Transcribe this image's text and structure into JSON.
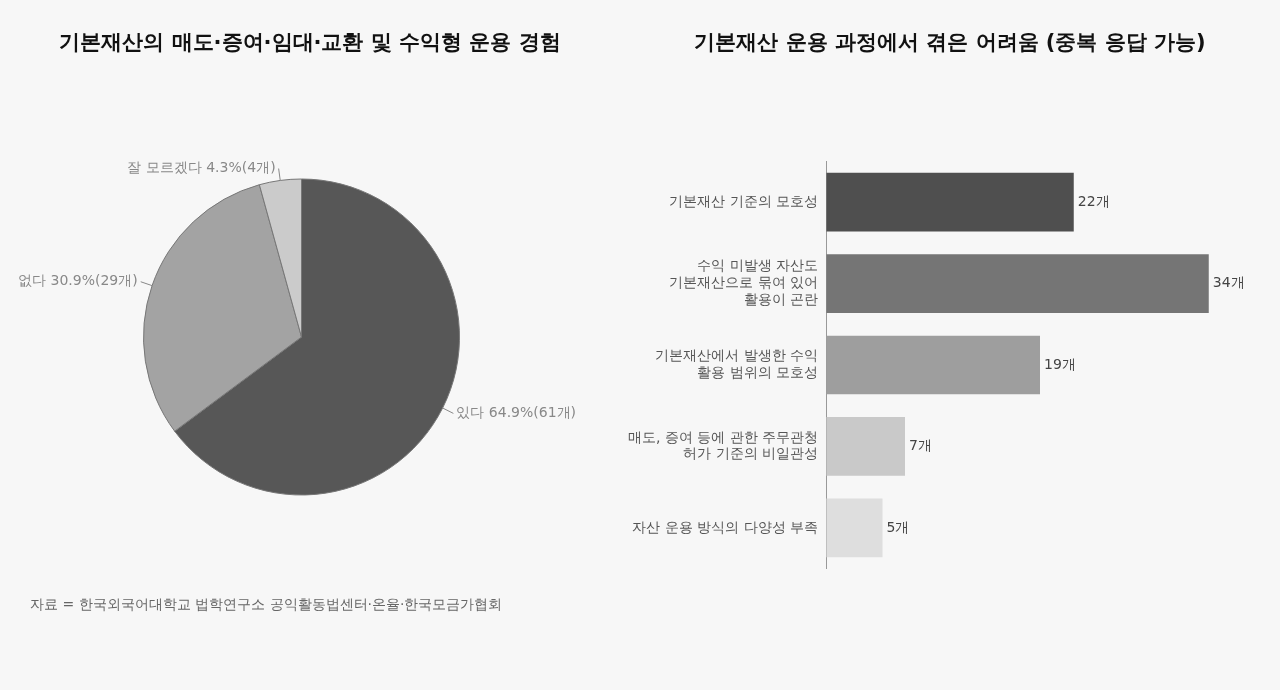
{
  "chart_data": [
    {
      "type": "pie",
      "title": "기본재산의 매도·증여·임대·교환 및 수익형 운용 경험",
      "categories": [
        "있다",
        "없다",
        "잘 모르겠다"
      ],
      "values": [
        64.9,
        30.9,
        4.3
      ],
      "colors": [
        "#575757",
        "#a3a3a3",
        "#cbcbcb"
      ],
      "value_labels": [
        "64.9%(61개)",
        "30.9%(29개)",
        "4.3%(4개)"
      ],
      "legend": false,
      "annotations": [
        "자료 = 한국외국어대학교 법학연구소 공익활동법센터·온율·한국모금가협회"
      ]
    },
    {
      "type": "bar",
      "orientation": "horizontal",
      "title": "기본재산 운용 과정에서 겪은 어려움 (중복 응답 가능)",
      "categories": [
        "기본재산 기준의 모호성",
        "수익 미발생 자산도\n기본재산으로 묶여 있어\n활용이 곤란",
        "기본재산에서 발생한 수익\n활용 범위의 모호성",
        "매도, 증여 등에 관한 주무관청\n허가 기준의 비일관성",
        "자산 운용 방식의 다양성 부족"
      ],
      "values": [
        22,
        34,
        19,
        7,
        5
      ],
      "colors": [
        "#4f4f4f",
        "#757575",
        "#9e9e9e",
        "#c9c9c9",
        "#dedede"
      ],
      "value_labels": [
        "22개",
        "34개",
        "19개",
        "7개",
        "5개"
      ],
      "tick_labels": "y",
      "legend": false
    }
  ]
}
